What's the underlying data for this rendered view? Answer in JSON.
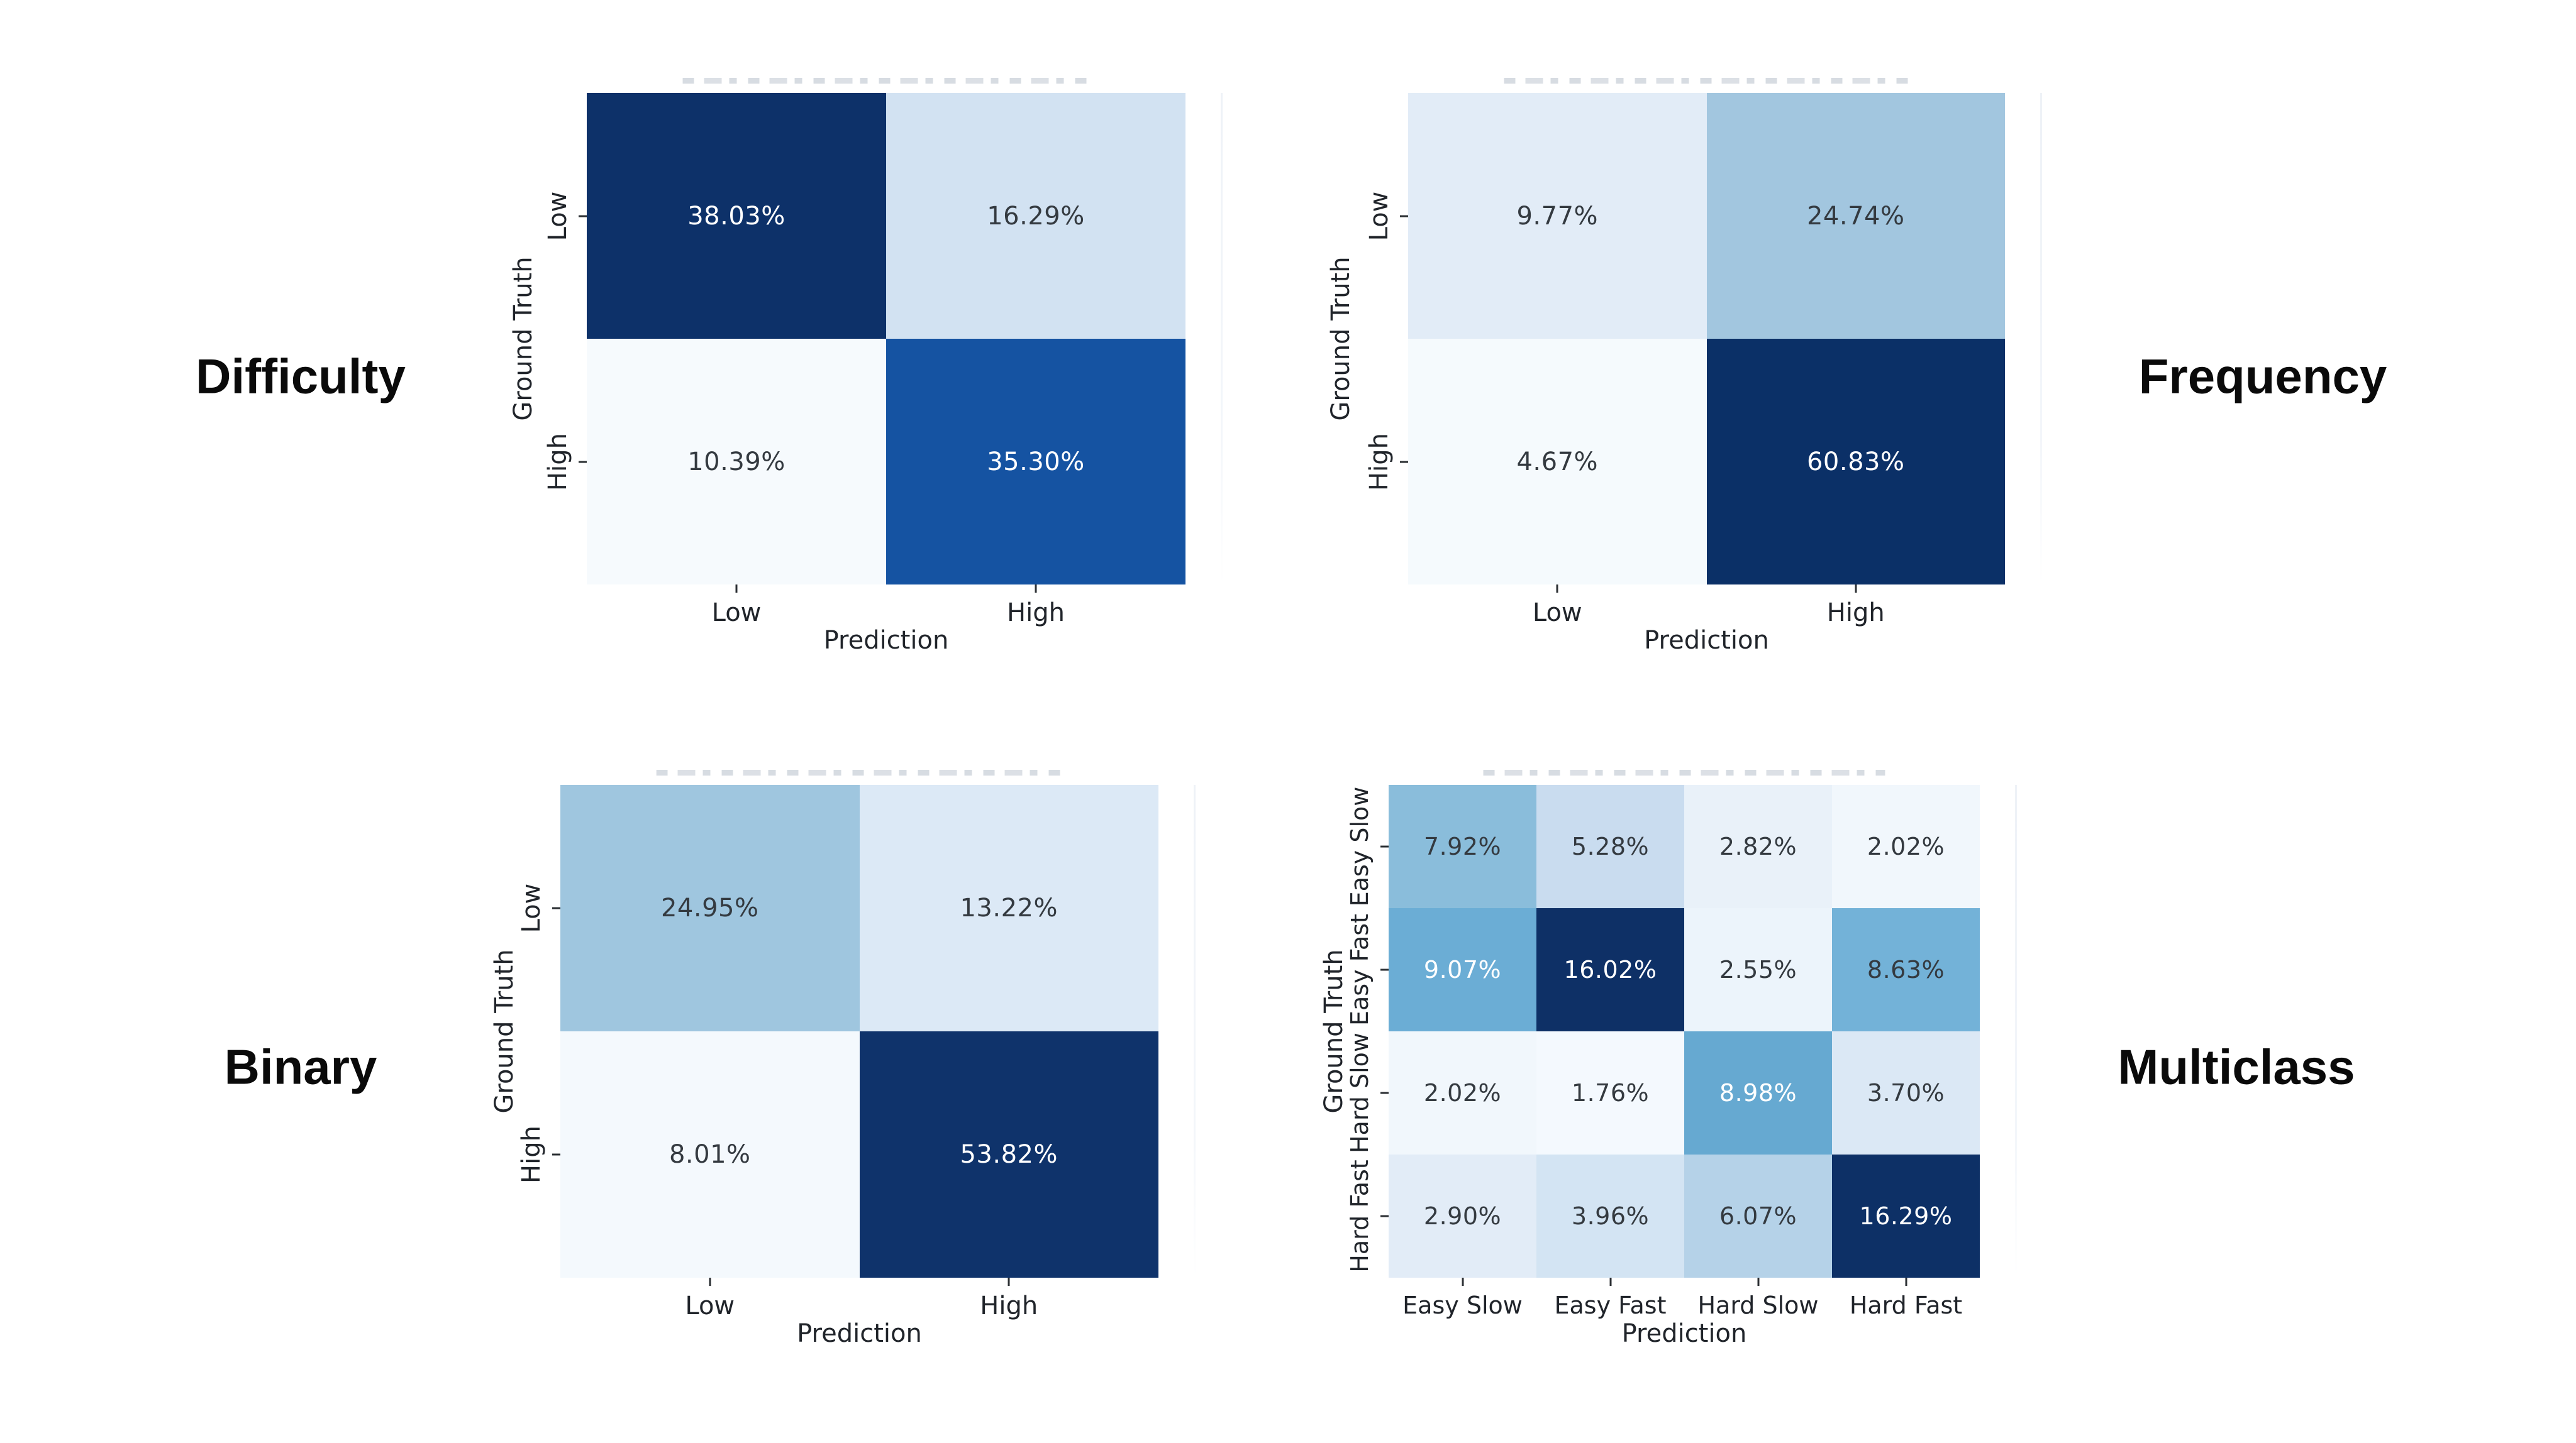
{
  "figure": {
    "background": "#ffffff",
    "colormap": "Blues",
    "note_clipped_titles": "figure titles above each matrix are cut off and unreadable"
  },
  "chart_data": [
    {
      "id": "difficulty",
      "type": "heatmap",
      "panel_label": "Difficulty",
      "panel_label_side": "left",
      "xlabel": "Prediction",
      "ylabel": "Ground Truth",
      "x_categories": [
        "Low",
        "High"
      ],
      "y_categories": [
        "Low",
        "High"
      ],
      "values_pct": [
        [
          38.03,
          16.29
        ],
        [
          10.39,
          35.3
        ]
      ],
      "cell_labels": [
        [
          "38.03%",
          "16.29%"
        ],
        [
          "10.39%",
          "35.30%"
        ]
      ],
      "cell_colors": [
        [
          "#0d3169",
          "#d2e2f2"
        ],
        [
          "#f6fafd",
          "#1553a2"
        ]
      ],
      "cell_text_colors": [
        [
          "#ffffff",
          "#343a40"
        ],
        [
          "#343a40",
          "#ffffff"
        ]
      ]
    },
    {
      "id": "frequency",
      "type": "heatmap",
      "panel_label": "Frequency",
      "panel_label_side": "right",
      "xlabel": "Prediction",
      "ylabel": "Ground Truth",
      "x_categories": [
        "Low",
        "High"
      ],
      "y_categories": [
        "Low",
        "High"
      ],
      "values_pct": [
        [
          9.77,
          24.74
        ],
        [
          4.67,
          60.83
        ]
      ],
      "cell_labels": [
        [
          "9.77%",
          "24.74%"
        ],
        [
          "4.67%",
          "60.83%"
        ]
      ],
      "cell_colors": [
        [
          "#e2ecf7",
          "#a2c6df"
        ],
        [
          "#f5fafd",
          "#0b3067"
        ]
      ],
      "cell_text_colors": [
        [
          "#343a40",
          "#343a40"
        ],
        [
          "#343a40",
          "#ffffff"
        ]
      ]
    },
    {
      "id": "binary",
      "type": "heatmap",
      "panel_label": "Binary",
      "panel_label_side": "left",
      "xlabel": "Prediction",
      "ylabel": "Ground Truth",
      "x_categories": [
        "Low",
        "High"
      ],
      "y_categories": [
        "Low",
        "High"
      ],
      "values_pct": [
        [
          24.95,
          13.22
        ],
        [
          8.01,
          53.82
        ]
      ],
      "cell_labels": [
        [
          "24.95%",
          "13.22%"
        ],
        [
          "8.01%",
          "53.82%"
        ]
      ],
      "cell_colors": [
        [
          "#9fc6df",
          "#dce9f6"
        ],
        [
          "#f4f9fd",
          "#0f336b"
        ]
      ],
      "cell_text_colors": [
        [
          "#343a40",
          "#343a40"
        ],
        [
          "#343a40",
          "#ffffff"
        ]
      ]
    },
    {
      "id": "multiclass",
      "type": "heatmap",
      "panel_label": "Multiclass",
      "panel_label_side": "right",
      "xlabel": "Prediction",
      "ylabel": "Ground Truth",
      "x_categories": [
        "Easy Slow",
        "Easy Fast",
        "Hard Slow",
        "Hard Fast"
      ],
      "y_categories": [
        "Easy Slow",
        "Easy Fast",
        "Hard Slow",
        "Hard Fast"
      ],
      "values_pct": [
        [
          7.92,
          5.28,
          2.82,
          2.02
        ],
        [
          9.07,
          16.02,
          2.55,
          8.63
        ],
        [
          2.02,
          1.76,
          8.98,
          3.7
        ],
        [
          2.9,
          3.96,
          6.07,
          16.29
        ]
      ],
      "cell_labels": [
        [
          "7.92%",
          "5.28%",
          "2.82%",
          "2.02%"
        ],
        [
          "9.07%",
          "16.02%",
          "2.55%",
          "8.63%"
        ],
        [
          "2.02%",
          "1.76%",
          "8.98%",
          "3.70%"
        ],
        [
          "2.90%",
          "3.96%",
          "6.07%",
          "16.29%"
        ]
      ],
      "cell_colors": [
        [
          "#8abddb",
          "#c9dcef",
          "#e9f1f9",
          "#f1f7fc"
        ],
        [
          "#6badd5",
          "#0e3066",
          "#ecf4fb",
          "#73b2d8"
        ],
        [
          "#f1f7fc",
          "#f4f9fe",
          "#66a9d1",
          "#dbe8f5"
        ],
        [
          "#e2ecf7",
          "#d3e4f3",
          "#b5d2e8",
          "#0d3066"
        ]
      ],
      "cell_text_colors": [
        [
          "#343a40",
          "#343a40",
          "#343a40",
          "#343a40"
        ],
        [
          "#ffffff",
          "#ffffff",
          "#343a40",
          "#343a40"
        ],
        [
          "#343a40",
          "#343a40",
          "#ffffff",
          "#343a40"
        ],
        [
          "#343a40",
          "#343a40",
          "#343a40",
          "#ffffff"
        ]
      ]
    }
  ]
}
